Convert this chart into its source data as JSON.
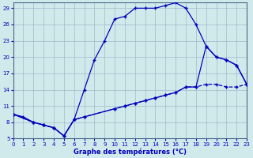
{
  "xlabel": "Graphe des températures (°C)",
  "bg_color": "#d0eaec",
  "grid_color": "#a0b8c8",
  "line_color": "#0000bb",
  "xlim": [
    0,
    23
  ],
  "ylim": [
    5,
    30
  ],
  "yticks": [
    5,
    8,
    11,
    14,
    17,
    20,
    23,
    26,
    29
  ],
  "xticks": [
    0,
    1,
    2,
    3,
    4,
    5,
    6,
    7,
    8,
    9,
    10,
    11,
    12,
    13,
    14,
    15,
    16,
    17,
    18,
    19,
    20,
    21,
    22,
    23
  ],
  "line1_x": [
    0,
    1,
    2,
    3,
    4,
    5,
    6,
    7,
    8,
    9,
    10,
    11,
    12,
    13,
    14,
    15,
    16,
    17,
    18,
    19,
    20,
    21,
    22,
    23
  ],
  "line1_y": [
    9.5,
    9.0,
    8.0,
    7.5,
    7.0,
    5.5,
    8.5,
    14.0,
    19.5,
    23.0,
    27.0,
    27.5,
    29.0,
    29.0,
    29.0,
    29.5,
    30.0,
    29.0,
    26.0,
    22.0,
    20.0,
    19.5,
    18.5,
    15.0
  ],
  "line2_x": [
    0,
    2,
    3,
    4,
    5,
    6,
    7,
    10,
    11,
    12,
    13,
    14,
    15,
    16,
    17,
    18,
    19,
    20,
    21,
    22,
    23
  ],
  "line2_y": [
    9.5,
    8.0,
    7.5,
    7.0,
    5.5,
    8.5,
    9.0,
    10.5,
    11.0,
    11.5,
    12.0,
    12.5,
    13.0,
    13.5,
    14.5,
    14.5,
    22.0,
    20.0,
    19.5,
    18.5,
    15.0
  ],
  "line3_x": [
    0,
    2,
    3,
    4,
    5,
    6,
    7,
    10,
    11,
    12,
    13,
    14,
    15,
    16,
    17,
    18,
    19,
    20,
    21,
    22,
    23
  ],
  "line3_y": [
    9.5,
    8.0,
    7.5,
    7.0,
    5.5,
    8.5,
    9.0,
    10.5,
    11.0,
    11.5,
    12.0,
    12.5,
    13.0,
    13.5,
    14.5,
    14.5,
    15.0,
    15.0,
    14.5,
    14.5,
    15.0
  ]
}
